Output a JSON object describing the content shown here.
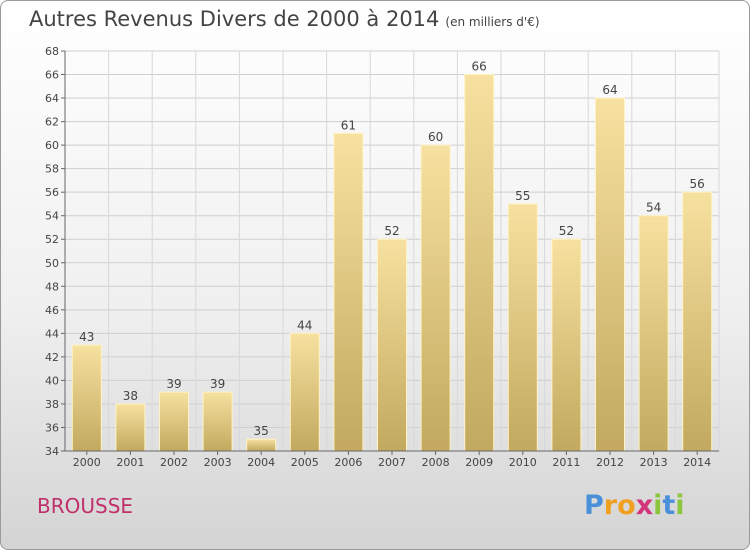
{
  "chart_data": {
    "type": "bar",
    "title": "Autres Revenus Divers de 2000 à 2014",
    "subtitle": "(en milliers d'€)",
    "categories": [
      "2000",
      "2001",
      "2002",
      "2003",
      "2004",
      "2005",
      "2006",
      "2007",
      "2008",
      "2009",
      "2010",
      "2011",
      "2012",
      "2013",
      "2014"
    ],
    "values": [
      43,
      38,
      39,
      39,
      35,
      44,
      61,
      52,
      60,
      66,
      55,
      52,
      64,
      54,
      56
    ],
    "ylim": [
      34,
      68
    ],
    "yticks": [
      34,
      36,
      38,
      40,
      42,
      44,
      46,
      48,
      50,
      52,
      54,
      56,
      58,
      60,
      62,
      64,
      66,
      68
    ],
    "grid": true,
    "bar_color": "#e6cc86",
    "data_labels": true
  },
  "footer": {
    "commune": "BROUSSE",
    "logo_letters": [
      {
        "char": "P",
        "color": "#4a90d9"
      },
      {
        "char": "r",
        "color": "#f0a020"
      },
      {
        "char": "o",
        "color": "#f0a020"
      },
      {
        "char": "x",
        "color": "#d2357a"
      },
      {
        "char": "i",
        "color": "#8cc63f"
      },
      {
        "char": "t",
        "color": "#4a90d9"
      },
      {
        "char": "i",
        "color": "#8cc63f"
      }
    ]
  }
}
